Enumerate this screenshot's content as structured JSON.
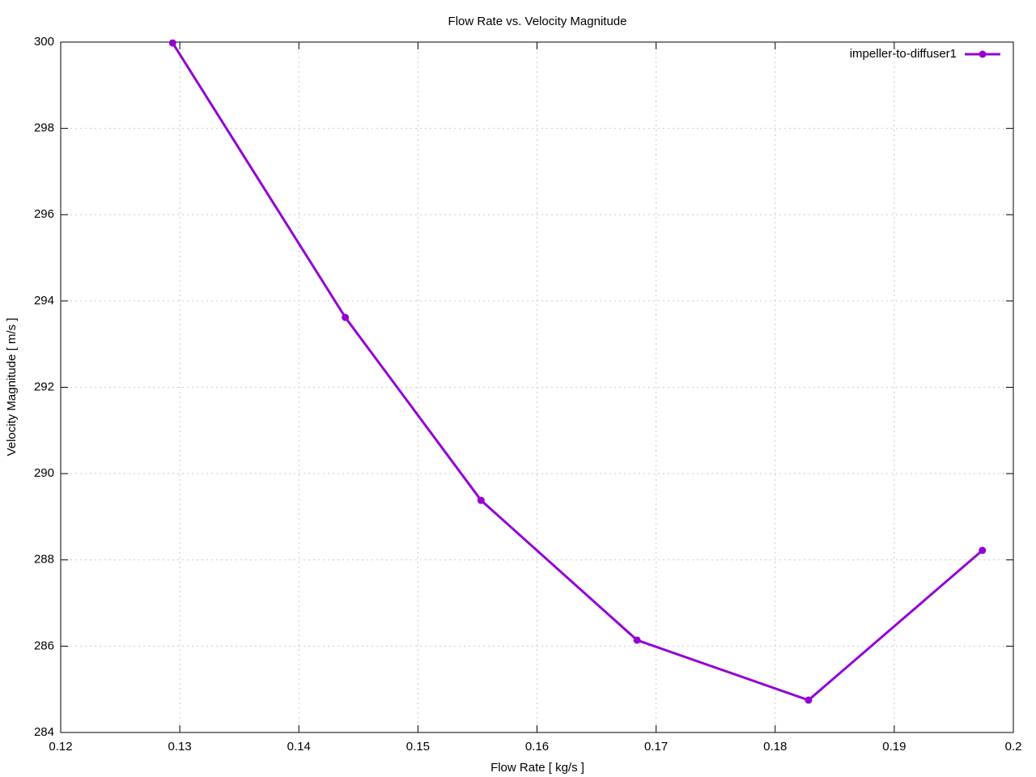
{
  "chart_data": {
    "type": "line",
    "title": "Flow Rate vs. Velocity Magnitude",
    "x_label": "Flow Rate [ kg/s ]",
    "y_label": "Velocity Magnitude [ m/s ]",
    "x": [
      0.1294,
      0.1439,
      0.1553,
      0.1684,
      0.1828,
      0.1974
    ],
    "series": [
      {
        "name": "impeller-to-diffuser1",
        "color": "#9400d3",
        "values": [
          299.98,
          293.62,
          289.38,
          286.14,
          284.75,
          288.22
        ]
      }
    ],
    "xlim": [
      0.12,
      0.2
    ],
    "xticks": [
      0.12,
      0.13,
      0.14,
      0.15,
      0.16,
      0.17,
      0.18,
      0.19,
      0.2
    ],
    "ylim": [
      284,
      300
    ],
    "yticks": [
      284,
      286,
      288,
      290,
      292,
      294,
      296,
      298,
      300
    ],
    "grid": true,
    "legend": "top-right"
  }
}
